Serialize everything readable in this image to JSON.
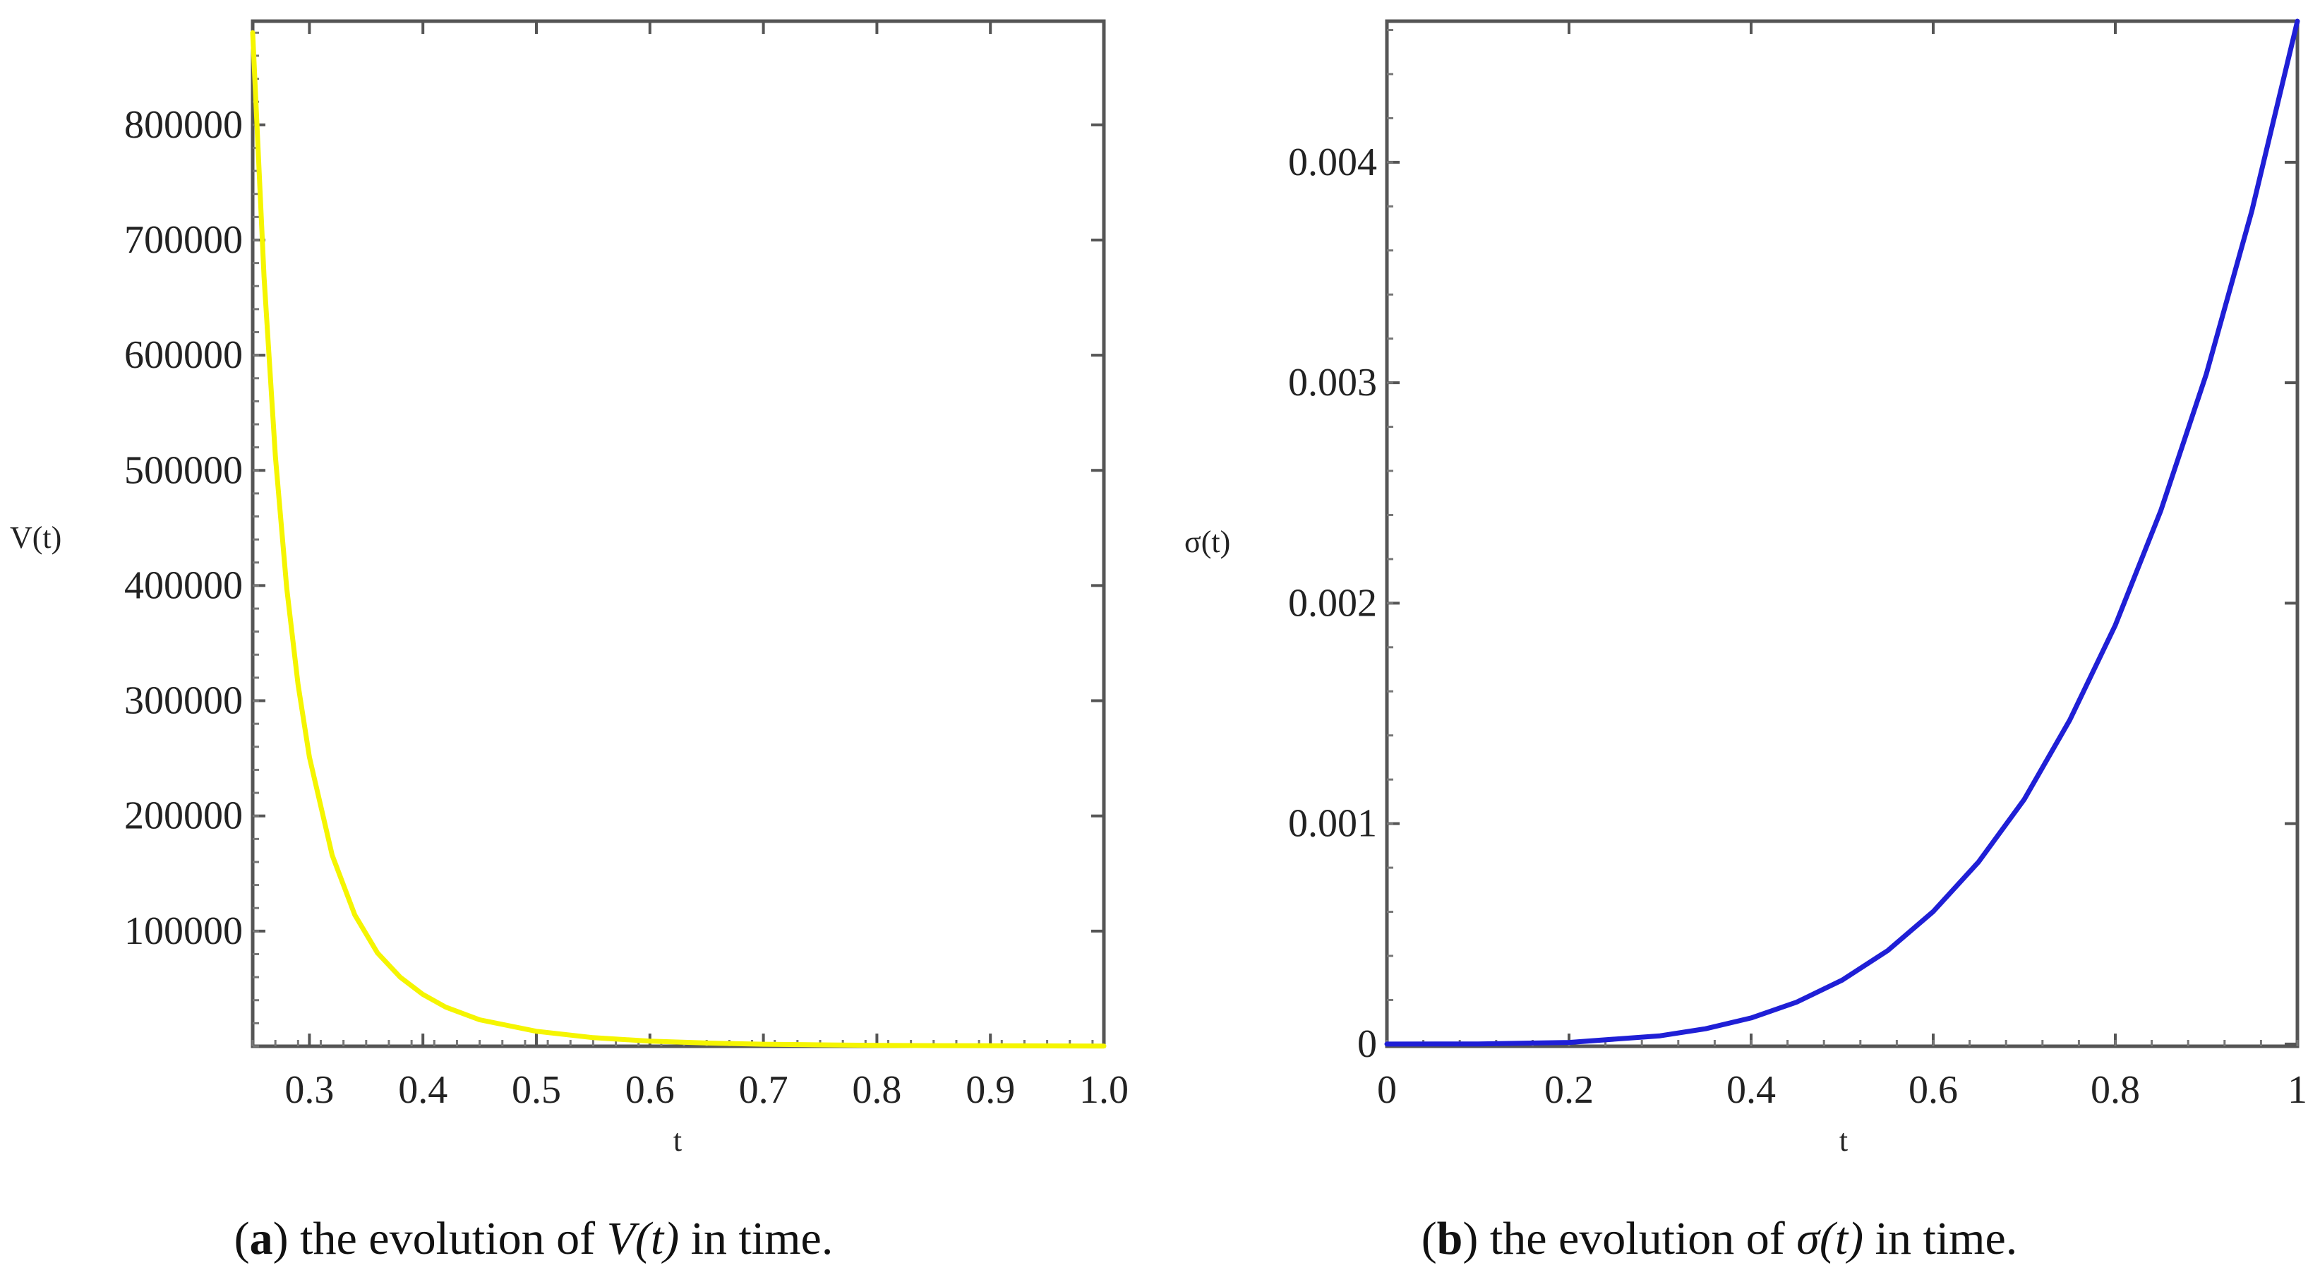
{
  "chart_data": [
    {
      "type": "line",
      "xlabel": "t",
      "ylabel": "V(t)",
      "xlim": [
        0.25,
        1.0
      ],
      "ylim": [
        0,
        890000
      ],
      "xticks": [
        0.3,
        0.4,
        0.5,
        0.6,
        0.7,
        0.8,
        0.9,
        1.0
      ],
      "xtick_labels": [
        "0.3",
        "0.4",
        "0.5",
        "0.6",
        "0.7",
        "0.8",
        "0.9",
        "1.0"
      ],
      "yticks": [
        100000,
        200000,
        300000,
        400000,
        500000,
        600000,
        700000,
        800000
      ],
      "ytick_labels": [
        "100000",
        "200000",
        "300000",
        "400000",
        "500000",
        "600000",
        "700000",
        "800000"
      ],
      "grid": false,
      "series": [
        {
          "color": "#f5f500",
          "x": [
            0.25,
            0.26,
            0.27,
            0.28,
            0.29,
            0.3,
            0.32,
            0.34,
            0.36,
            0.38,
            0.4,
            0.42,
            0.45,
            0.5,
            0.55,
            0.6,
            0.65,
            0.7,
            0.75,
            0.8,
            0.85,
            0.9,
            0.95,
            1.0
          ],
          "y": [
            880000,
            668000,
            512000,
            398000,
            314000,
            251000,
            166000,
            114000,
            81000,
            60000,
            45000,
            34000,
            23000,
            13000,
            7500,
            4500,
            2800,
            1800,
            1200,
            800,
            550,
            400,
            300,
            200
          ]
        }
      ],
      "caption": {
        "label": "(a)",
        "letter": "a",
        "prefix": "the evolution of",
        "math": "V(t)",
        "suffix": "in time."
      }
    },
    {
      "type": "line",
      "xlabel": "t",
      "ylabel": "σ(t)",
      "xlim": [
        0,
        1
      ],
      "ylim": [
        -1e-05,
        0.00464
      ],
      "xticks": [
        0,
        0.2,
        0.4,
        0.6,
        0.8,
        1
      ],
      "xtick_labels": [
        "0",
        "0.2",
        "0.4",
        "0.6",
        "0.8",
        "1"
      ],
      "yticks": [
        0,
        0.001,
        0.002,
        0.003,
        0.004
      ],
      "ytick_labels": [
        "0",
        "0.001",
        "0.002",
        "0.003",
        "0.004"
      ],
      "grid": false,
      "series": [
        {
          "color": "#1f1fd6",
          "x": [
            0,
            0.1,
            0.2,
            0.3,
            0.35,
            0.4,
            0.45,
            0.5,
            0.55,
            0.6,
            0.65,
            0.7,
            0.75,
            0.8,
            0.85,
            0.9,
            0.95,
            1.0
          ],
          "y": [
            0,
            5e-07,
            7.4e-06,
            3.75e-05,
            6.95e-05,
            0.0001185,
            0.00019,
            0.00029,
            0.000424,
            0.000601,
            0.000827,
            0.00111,
            0.00147,
            0.0019,
            0.00242,
            0.00304,
            0.00378,
            0.00464
          ]
        }
      ],
      "caption": {
        "label": "(b)",
        "letter": "b",
        "prefix": "the evolution of",
        "math": "σ(t)",
        "suffix": "in time."
      }
    }
  ]
}
